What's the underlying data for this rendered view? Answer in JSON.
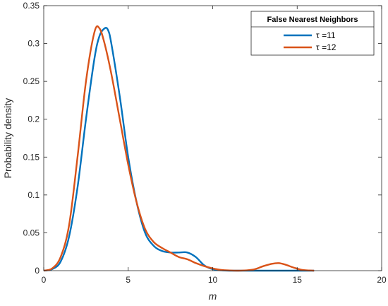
{
  "chart_data": {
    "type": "line",
    "xlabel": "m",
    "ylabel": "Probability density",
    "xlim": [
      0,
      20
    ],
    "ylim": [
      0,
      0.35
    ],
    "xticks": [
      "0",
      "5",
      "10",
      "15",
      "20"
    ],
    "yticks": [
      "0",
      "0.05",
      "0.1",
      "0.15",
      "0.2",
      "0.25",
      "0.3",
      "0.35"
    ],
    "grid": false,
    "legend": {
      "title": "False Nearest Neighbors",
      "placement": "top-right"
    },
    "series": [
      {
        "name": "τ =11",
        "color": "#0072BD",
        "x": [
          0,
          0.5,
          1.0,
          1.5,
          2.0,
          2.5,
          3.0,
          3.3,
          3.6,
          3.8,
          4.0,
          4.5,
          5.0,
          5.5,
          6.0,
          6.5,
          7.0,
          7.5,
          8.0,
          8.5,
          9.0,
          9.5,
          10.0,
          10.5,
          11.0,
          12.0,
          13.0,
          14.0,
          15.0,
          16.0
        ],
        "y": [
          0.0,
          0.002,
          0.012,
          0.045,
          0.11,
          0.2,
          0.28,
          0.31,
          0.32,
          0.318,
          0.3,
          0.23,
          0.15,
          0.09,
          0.05,
          0.033,
          0.026,
          0.024,
          0.024,
          0.024,
          0.018,
          0.007,
          0.002,
          0.0005,
          0.0,
          0.0,
          0.0,
          0.0,
          0.0,
          0.0
        ]
      },
      {
        "name": "τ =12",
        "color": "#D95319",
        "x": [
          0,
          0.5,
          1.0,
          1.5,
          2.0,
          2.5,
          3.0,
          3.3,
          3.6,
          4.0,
          4.5,
          5.0,
          5.5,
          6.0,
          6.5,
          7.0,
          7.5,
          8.0,
          8.5,
          9.0,
          9.5,
          10.0,
          10.5,
          11.0,
          11.5,
          12.0,
          12.5,
          13.0,
          13.5,
          13.9,
          14.3,
          14.8,
          15.3,
          16.0
        ],
        "y": [
          0.0,
          0.003,
          0.018,
          0.06,
          0.15,
          0.25,
          0.315,
          0.32,
          0.3,
          0.26,
          0.2,
          0.14,
          0.09,
          0.055,
          0.038,
          0.03,
          0.024,
          0.018,
          0.015,
          0.01,
          0.006,
          0.003,
          0.001,
          0.0003,
          0.0,
          0.0004,
          0.002,
          0.006,
          0.009,
          0.01,
          0.008,
          0.004,
          0.001,
          0.0
        ]
      }
    ]
  }
}
